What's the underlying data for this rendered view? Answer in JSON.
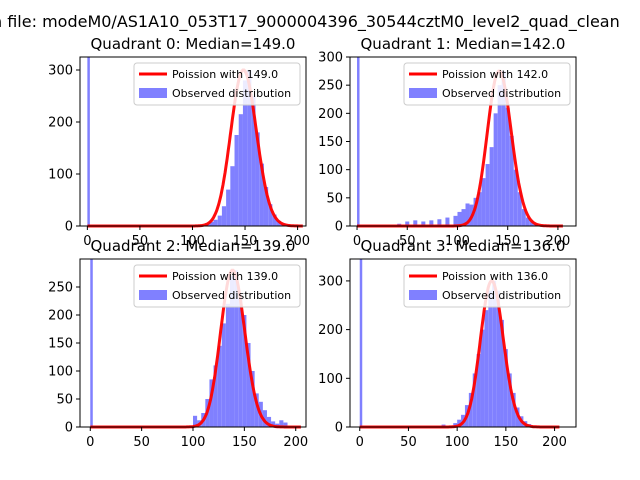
{
  "figure_title": "n file: modeM0/AS1A10_053T17_9000004396_30544cztM0_level2_quad_clean",
  "colors": {
    "bar": "#8080ff",
    "curve": "#ff0000",
    "axis": "#000000",
    "background": "#ffffff"
  },
  "chart_data": [
    {
      "type": "bar",
      "title": "Quadrant 0: Median=149.0",
      "xlim": [
        -7,
        208
      ],
      "ylim": [
        0,
        325
      ],
      "xticks": [
        0,
        50,
        100,
        150,
        200
      ],
      "yticks": [
        0,
        100,
        200,
        300
      ],
      "legend_position": "top-right",
      "legend": [
        "Poission with 149.0",
        "Observed distribution"
      ],
      "zero_bin_count": 325,
      "poisson_mean": 149.0,
      "bins": [
        {
          "x": 112,
          "y": 4
        },
        {
          "x": 116,
          "y": 8
        },
        {
          "x": 120,
          "y": 12
        },
        {
          "x": 124,
          "y": 20
        },
        {
          "x": 128,
          "y": 38
        },
        {
          "x": 132,
          "y": 70
        },
        {
          "x": 136,
          "y": 115
        },
        {
          "x": 140,
          "y": 175
        },
        {
          "x": 144,
          "y": 215
        },
        {
          "x": 148,
          "y": 280
        },
        {
          "x": 152,
          "y": 300
        },
        {
          "x": 156,
          "y": 250
        },
        {
          "x": 160,
          "y": 180
        },
        {
          "x": 164,
          "y": 120
        },
        {
          "x": 168,
          "y": 75
        },
        {
          "x": 172,
          "y": 42
        },
        {
          "x": 176,
          "y": 22
        },
        {
          "x": 180,
          "y": 10
        },
        {
          "x": 184,
          "y": 5
        },
        {
          "x": 188,
          "y": 3
        }
      ]
    },
    {
      "type": "bar",
      "title": "Quadrant 1: Median=142.0",
      "xlim": [
        -7,
        218
      ],
      "ylim": [
        0,
        300
      ],
      "xticks": [
        0,
        50,
        100,
        150,
        200
      ],
      "yticks": [
        0,
        50,
        100,
        150,
        200,
        250,
        300
      ],
      "legend_position": "top-right",
      "legend": [
        "Poission with 142.0",
        "Observed distribution"
      ],
      "zero_bin_count": 300,
      "poisson_mean": 142.0,
      "bins": [
        {
          "x": 40,
          "y": 4
        },
        {
          "x": 48,
          "y": 8
        },
        {
          "x": 56,
          "y": 10
        },
        {
          "x": 64,
          "y": 8
        },
        {
          "x": 72,
          "y": 10
        },
        {
          "x": 80,
          "y": 12
        },
        {
          "x": 88,
          "y": 15
        },
        {
          "x": 96,
          "y": 18
        },
        {
          "x": 100,
          "y": 25
        },
        {
          "x": 104,
          "y": 30
        },
        {
          "x": 108,
          "y": 40
        },
        {
          "x": 112,
          "y": 38
        },
        {
          "x": 116,
          "y": 50
        },
        {
          "x": 120,
          "y": 60
        },
        {
          "x": 124,
          "y": 85
        },
        {
          "x": 128,
          "y": 110
        },
        {
          "x": 132,
          "y": 140
        },
        {
          "x": 136,
          "y": 200
        },
        {
          "x": 140,
          "y": 250
        },
        {
          "x": 144,
          "y": 275
        },
        {
          "x": 148,
          "y": 210
        },
        {
          "x": 152,
          "y": 160
        },
        {
          "x": 156,
          "y": 100
        },
        {
          "x": 160,
          "y": 60
        },
        {
          "x": 164,
          "y": 30
        },
        {
          "x": 168,
          "y": 15
        },
        {
          "x": 172,
          "y": 8
        },
        {
          "x": 176,
          "y": 4
        }
      ]
    },
    {
      "type": "bar",
      "title": "Quadrant 2: Median=139.0",
      "xlim": [
        -10,
        210
      ],
      "ylim": [
        0,
        300
      ],
      "xticks": [
        0,
        50,
        100,
        150,
        200
      ],
      "yticks": [
        0,
        50,
        100,
        150,
        200,
        250
      ],
      "legend_position": "top-right",
      "legend": [
        "Poission with 139.0",
        "Observed distribution"
      ],
      "zero_bin_count": 300,
      "poisson_mean": 139.0,
      "bins": [
        {
          "x": 100,
          "y": 20
        },
        {
          "x": 104,
          "y": 12
        },
        {
          "x": 108,
          "y": 25
        },
        {
          "x": 112,
          "y": 50
        },
        {
          "x": 116,
          "y": 85
        },
        {
          "x": 120,
          "y": 110
        },
        {
          "x": 124,
          "y": 145
        },
        {
          "x": 128,
          "y": 185
        },
        {
          "x": 132,
          "y": 220
        },
        {
          "x": 136,
          "y": 270
        },
        {
          "x": 140,
          "y": 280
        },
        {
          "x": 144,
          "y": 230
        },
        {
          "x": 148,
          "y": 200
        },
        {
          "x": 152,
          "y": 150
        },
        {
          "x": 156,
          "y": 100
        },
        {
          "x": 160,
          "y": 60
        },
        {
          "x": 164,
          "y": 45
        },
        {
          "x": 168,
          "y": 30
        },
        {
          "x": 172,
          "y": 18
        },
        {
          "x": 176,
          "y": 10
        },
        {
          "x": 180,
          "y": 6
        },
        {
          "x": 184,
          "y": 12
        },
        {
          "x": 188,
          "y": 8
        }
      ]
    },
    {
      "type": "bar",
      "title": "Quadrant 3: Median=136.0",
      "xlim": [
        -10,
        222
      ],
      "ylim": [
        0,
        345
      ],
      "xticks": [
        0,
        50,
        100,
        150,
        200
      ],
      "yticks": [
        0,
        100,
        200,
        300
      ],
      "legend_position": "top-right",
      "legend": [
        "Poission with 136.0",
        "Observed distribution"
      ],
      "zero_bin_count": 345,
      "poisson_mean": 136.0,
      "bins": [
        {
          "x": 84,
          "y": 5
        },
        {
          "x": 92,
          "y": 3
        },
        {
          "x": 96,
          "y": 8
        },
        {
          "x": 100,
          "y": 15
        },
        {
          "x": 104,
          "y": 25
        },
        {
          "x": 108,
          "y": 45
        },
        {
          "x": 112,
          "y": 70
        },
        {
          "x": 116,
          "y": 110
        },
        {
          "x": 120,
          "y": 150
        },
        {
          "x": 124,
          "y": 200
        },
        {
          "x": 128,
          "y": 240
        },
        {
          "x": 132,
          "y": 280
        },
        {
          "x": 136,
          "y": 300
        },
        {
          "x": 140,
          "y": 280
        },
        {
          "x": 144,
          "y": 220
        },
        {
          "x": 148,
          "y": 160
        },
        {
          "x": 152,
          "y": 110
        },
        {
          "x": 156,
          "y": 70
        },
        {
          "x": 160,
          "y": 40
        },
        {
          "x": 164,
          "y": 22
        },
        {
          "x": 168,
          "y": 12
        },
        {
          "x": 172,
          "y": 6
        },
        {
          "x": 176,
          "y": 3
        }
      ]
    }
  ]
}
